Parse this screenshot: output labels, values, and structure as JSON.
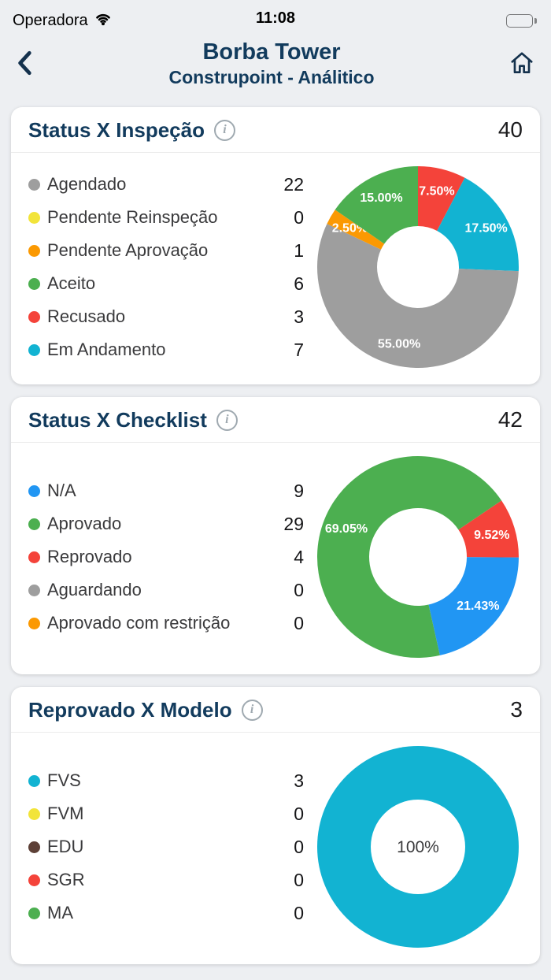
{
  "colors": {
    "navy": "#123b5d",
    "page_bg": "#edeff2",
    "card_bg": "#ffffff",
    "gray": "#9e9e9e",
    "yellow": "#f2e43a",
    "orange": "#fb9902",
    "green": "#4caf50",
    "red": "#f4433a",
    "cyan": "#12b3d2",
    "blue": "#2196f3",
    "brown": "#5d4037"
  },
  "icons": {
    "wifi": "wifi-icon",
    "battery": "battery-full-icon",
    "back": "chevron-left-icon",
    "home": "house-icon",
    "info": "circled-i-icon"
  },
  "status_bar": {
    "carrier": "Operadora",
    "time": "11:08"
  },
  "header": {
    "title": "Borba Tower",
    "subtitle": "Construpoint - Análitico"
  },
  "cards": [
    {
      "title": "Status X Inspeção",
      "total": "40",
      "legend": [
        {
          "label": "Agendado",
          "count": "22",
          "color": "#9e9e9e"
        },
        {
          "label": "Pendente Reinspeção",
          "count": "0",
          "color": "#f2e43a"
        },
        {
          "label": "Pendente Aprovação",
          "count": "1",
          "color": "#fb9902"
        },
        {
          "label": "Aceito",
          "count": "6",
          "color": "#4caf50"
        },
        {
          "label": "Recusado",
          "count": "3",
          "color": "#f4433a"
        },
        {
          "label": "Em Andamento",
          "count": "7",
          "color": "#12b3d2"
        }
      ]
    },
    {
      "title": "Status X Checklist",
      "total": "42",
      "legend": [
        {
          "label": "N/A",
          "count": "9",
          "color": "#2196f3"
        },
        {
          "label": "Aprovado",
          "count": "29",
          "color": "#4caf50"
        },
        {
          "label": "Reprovado",
          "count": "4",
          "color": "#f4433a"
        },
        {
          "label": "Aguardando",
          "count": "0",
          "color": "#9e9e9e"
        },
        {
          "label": "Aprovado com restrição",
          "count": "0",
          "color": "#fb9902"
        }
      ]
    },
    {
      "title": "Reprovado X Modelo",
      "total": "3",
      "legend": [
        {
          "label": "FVS",
          "count": "3",
          "color": "#12b3d2"
        },
        {
          "label": "FVM",
          "count": "0",
          "color": "#f2e43a"
        },
        {
          "label": "EDU",
          "count": "0",
          "color": "#5d4037"
        },
        {
          "label": "SGR",
          "count": "0",
          "color": "#f4433a"
        },
        {
          "label": "MA",
          "count": "0",
          "color": "#4caf50"
        }
      ]
    }
  ],
  "chart_data": [
    {
      "type": "pie",
      "title": "Status X Inspeção",
      "total": 40,
      "start_angle": 0,
      "outer_radius": 128,
      "inner_radius": 52,
      "label_radius": 100,
      "slices": [
        {
          "name": "Recusado",
          "value": 3,
          "pct_label": "7.50%",
          "color": "#f4433a"
        },
        {
          "name": "Em Andamento",
          "value": 7,
          "pct_label": "17.50%",
          "color": "#12b3d2"
        },
        {
          "name": "Agendado",
          "value": 22,
          "pct_label": "55.00%",
          "color": "#9e9e9e"
        },
        {
          "name": "Pendente Aprovação",
          "value": 1,
          "pct_label": "2.50%",
          "color": "#fb9902"
        },
        {
          "name": "Aceito",
          "value": 6,
          "pct_label": "15.00%",
          "color": "#4caf50"
        }
      ]
    },
    {
      "type": "pie",
      "title": "Status X Checklist",
      "total": 42,
      "start_angle": 56,
      "outer_radius": 128,
      "inner_radius": 62,
      "label_radius": 98,
      "slices": [
        {
          "name": "Reprovado",
          "value": 4,
          "pct_label": "9.52%",
          "color": "#f4433a"
        },
        {
          "name": "N/A",
          "value": 9,
          "pct_label": "21.43%",
          "color": "#2196f3"
        },
        {
          "name": "Aprovado",
          "value": 29,
          "pct_label": "69.05%",
          "color": "#4caf50"
        }
      ]
    },
    {
      "type": "pie",
      "title": "Reprovado X Modelo",
      "total": 3,
      "start_angle": 0,
      "outer_radius": 128,
      "inner_radius": 60,
      "label_radius": 0,
      "center_label_color": "#3a3a3c",
      "slices": [
        {
          "name": "FVS",
          "value": 3,
          "pct_label": "100%",
          "color": "#12b3d2"
        }
      ]
    }
  ]
}
